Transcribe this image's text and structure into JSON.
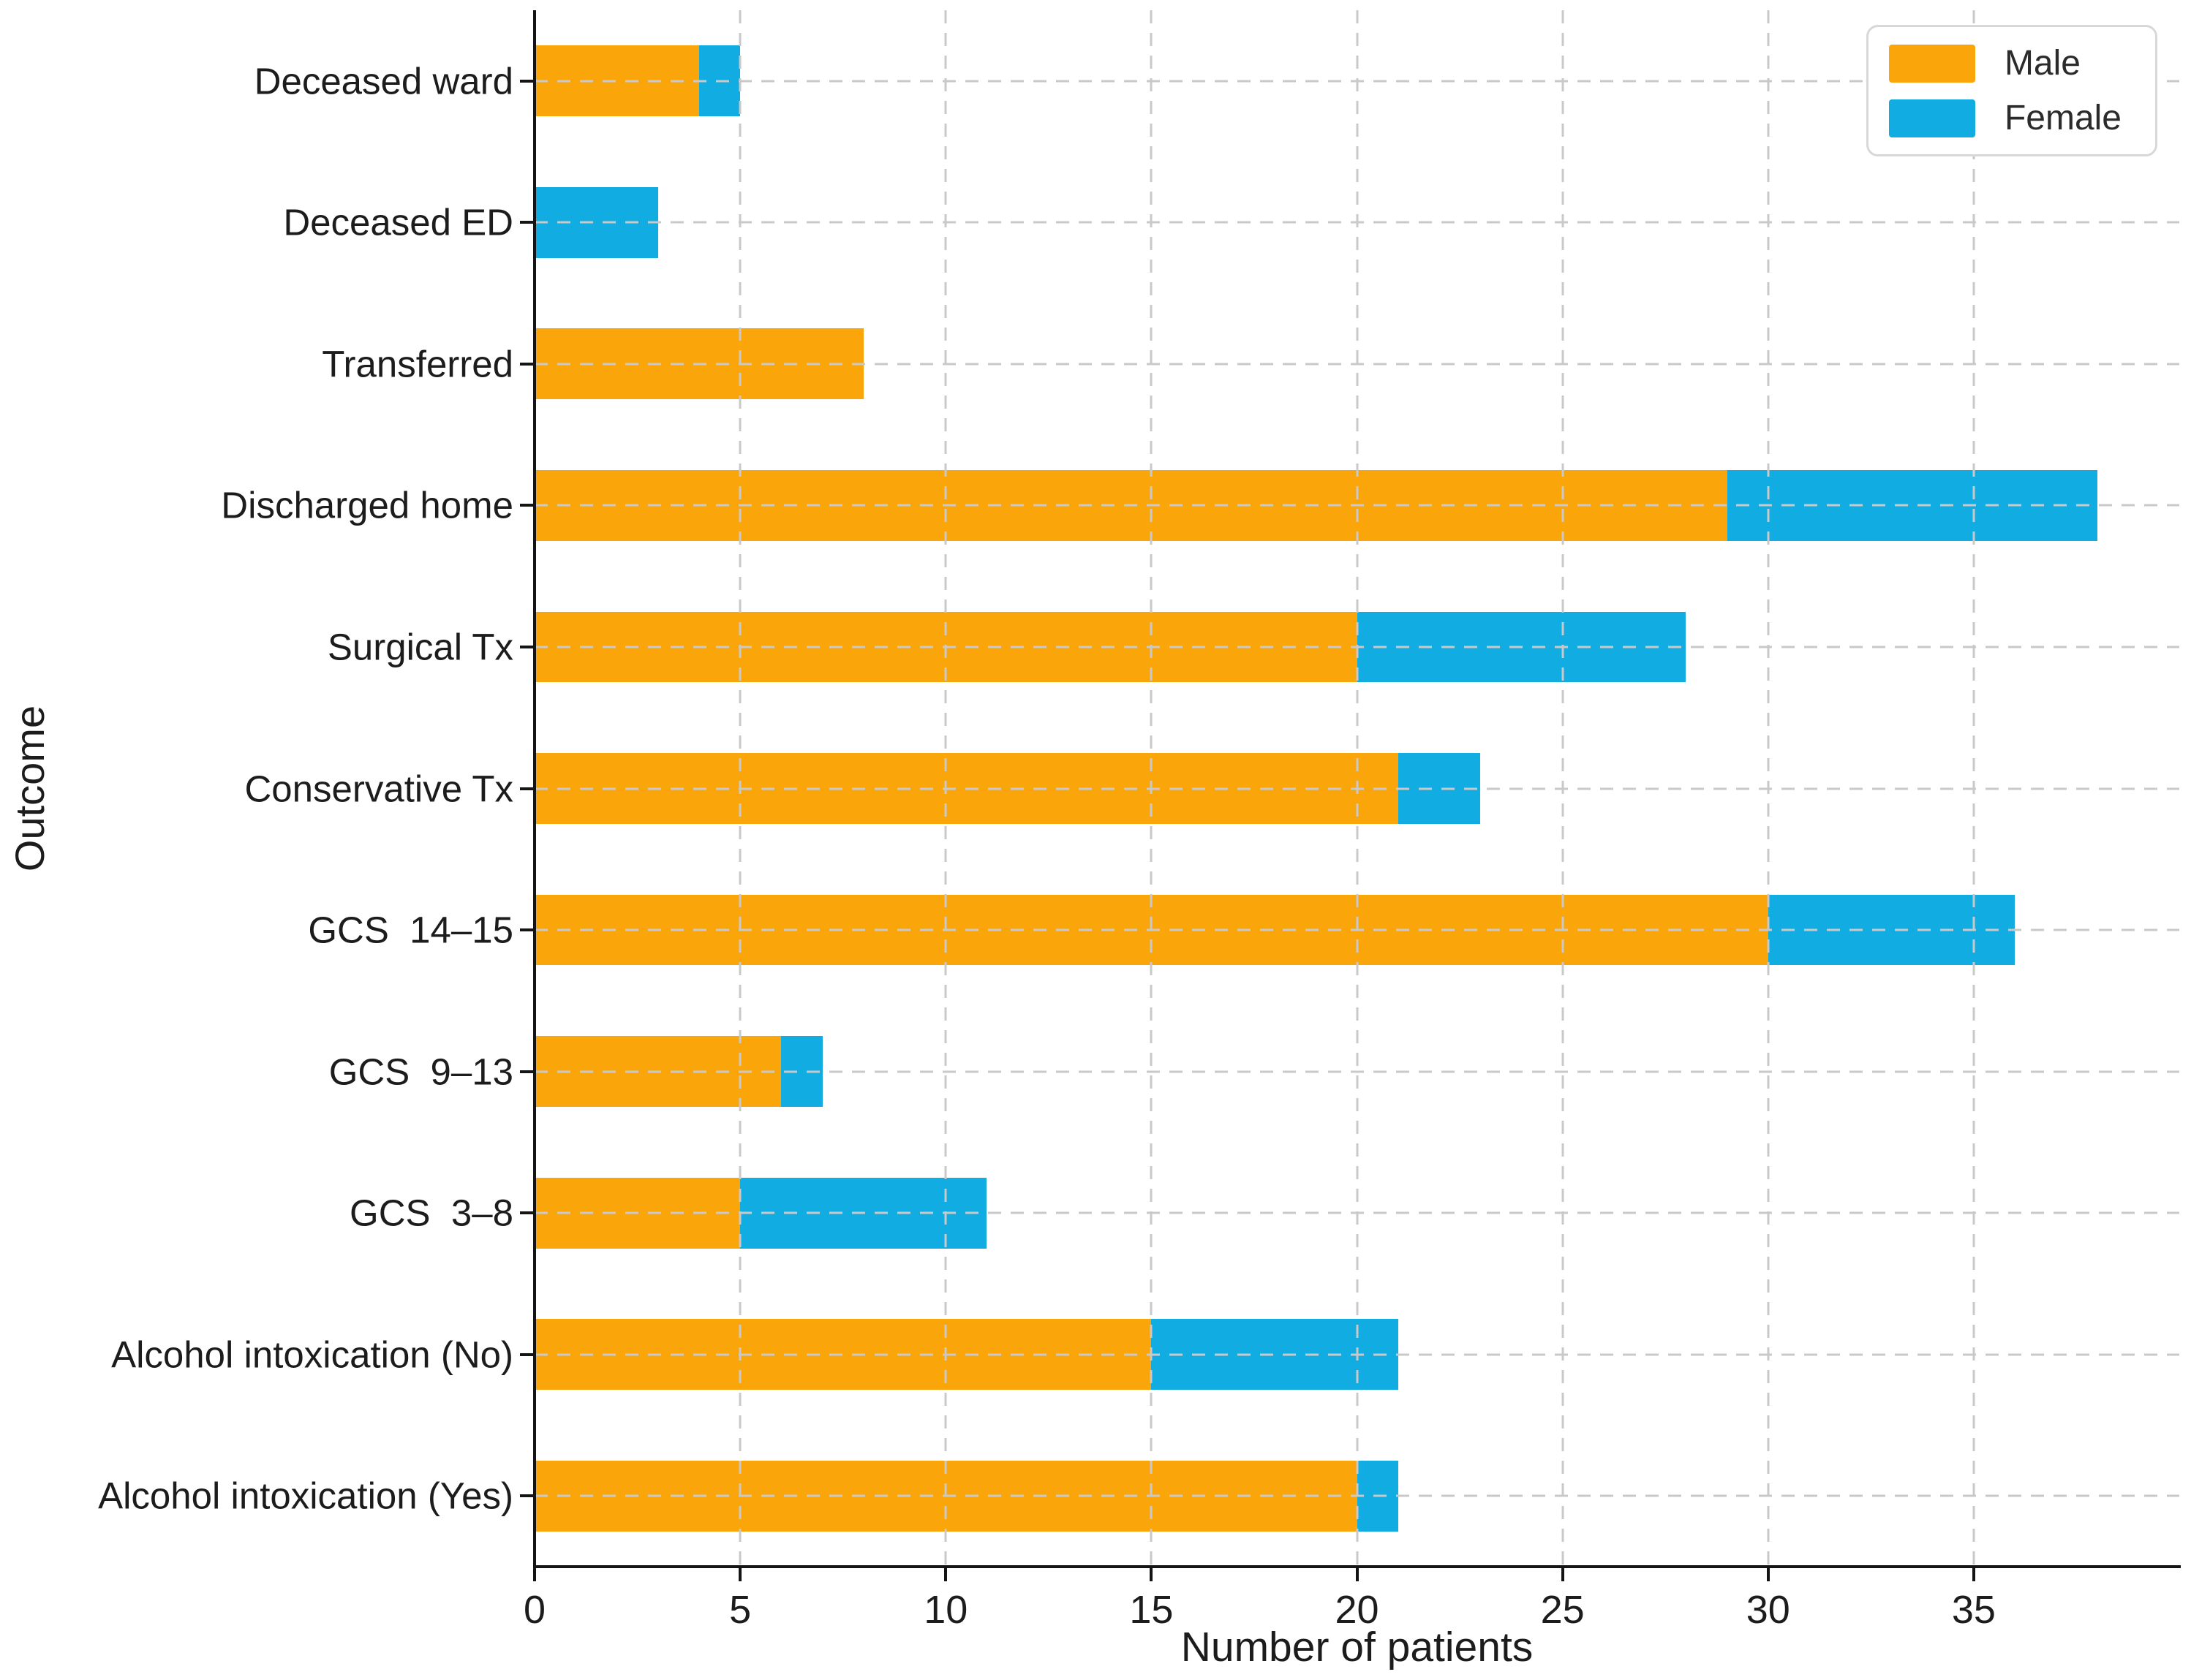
{
  "chart_data": {
    "type": "bar",
    "orientation": "horizontal",
    "stacked": true,
    "title": "",
    "xlabel": "Number of patients",
    "ylabel": "Outcome",
    "categories": [
      "Deceased ward",
      "Deceased ED",
      "Transferred",
      "Discharged home",
      "Surgical Tx",
      "Conservative Tx",
      "GCS  14–15",
      "GCS  9–13",
      "GCS  3–8",
      "Alcohol intoxication (No)",
      "Alcohol intoxication (Yes)"
    ],
    "series": [
      {
        "name": "Male",
        "color": "#FAA50A",
        "values": [
          4,
          0,
          8,
          29,
          20,
          21,
          30,
          6,
          5,
          15,
          20
        ]
      },
      {
        "name": "Female",
        "color": "#10ACE2",
        "values": [
          1,
          3,
          0,
          9,
          8,
          2,
          6,
          1,
          6,
          6,
          1
        ]
      }
    ],
    "totals": [
      5,
      3,
      8,
      38,
      28,
      23,
      36,
      7,
      11,
      21,
      21
    ],
    "xlim": [
      0,
      40
    ],
    "xticks": [
      0,
      5,
      10,
      15,
      20,
      25,
      30,
      35
    ],
    "grid": {
      "style": "dashed",
      "color": "#c9c9c9",
      "vertical": true,
      "horizontal": true,
      "on_top_of_bars": true
    },
    "legend": {
      "position": "upper-right",
      "items": [
        "Male",
        "Female"
      ]
    }
  },
  "styles": {
    "background": "#ffffff",
    "text_color": "#1c1c1c",
    "spine_color": "#141414",
    "legend_border_color": "#d8d8d8"
  }
}
